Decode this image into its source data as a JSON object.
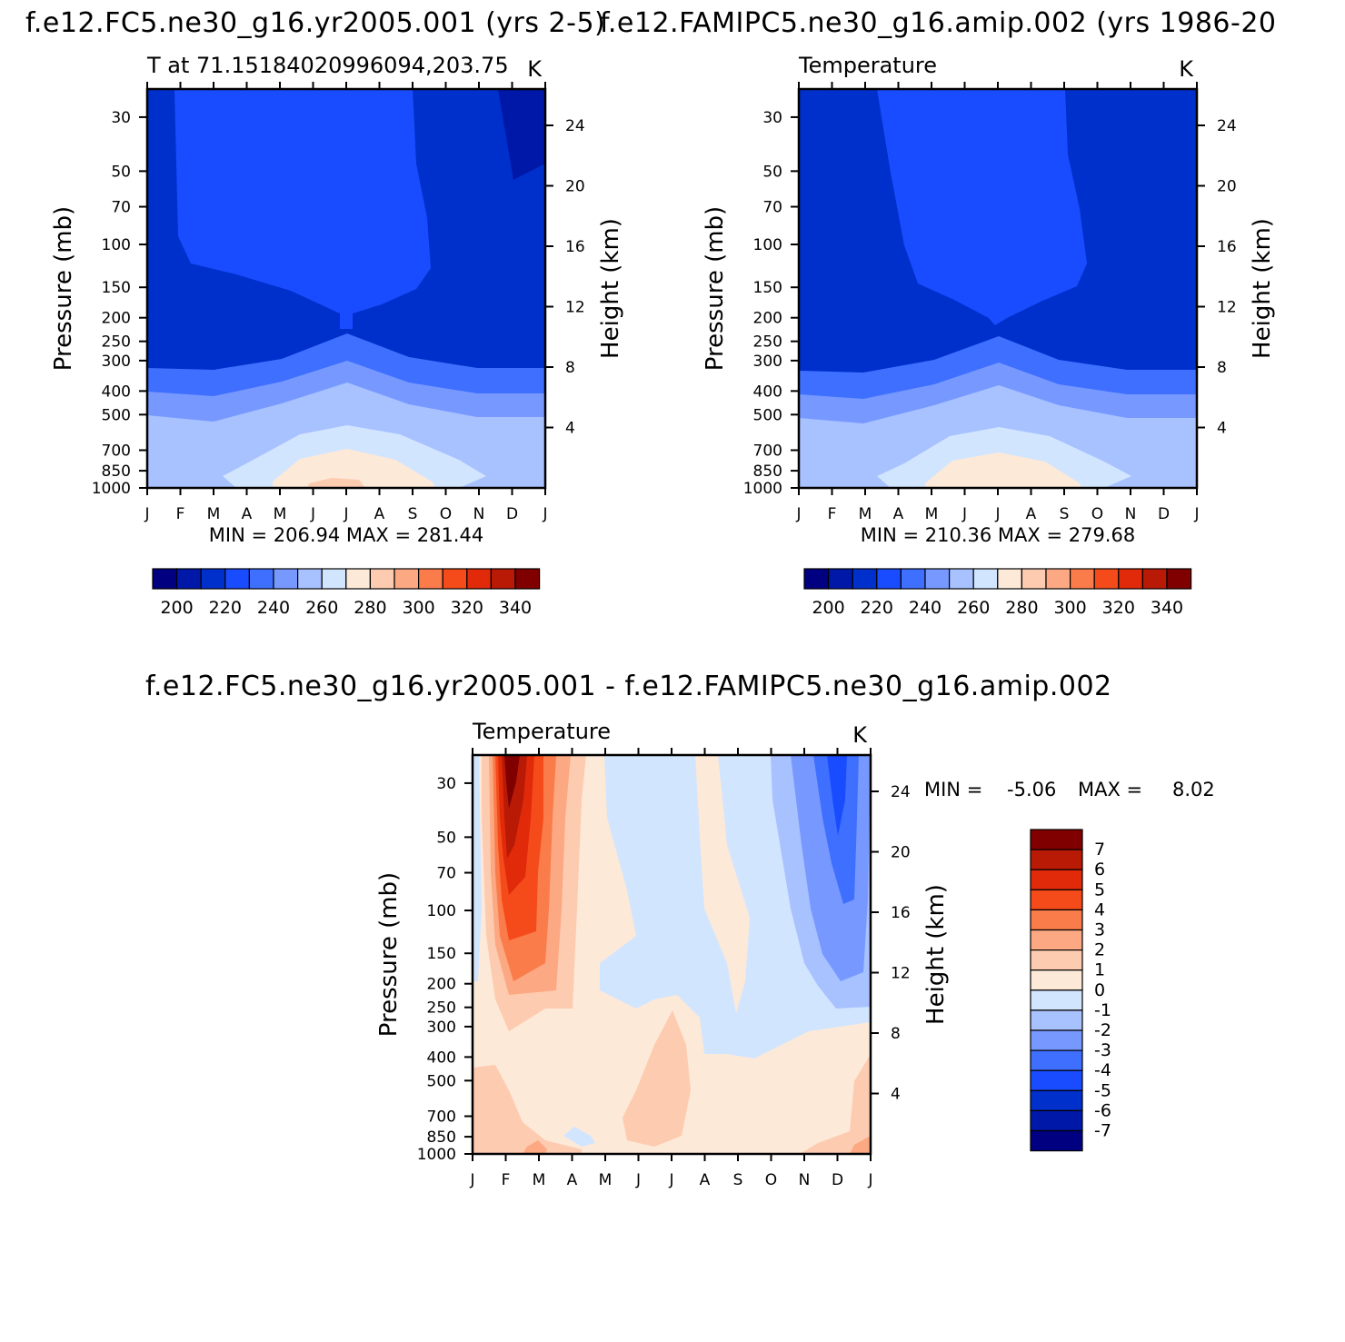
{
  "page": {
    "title_left": "f.e12.FC5.ne30_g16.yr2005.001 (yrs 2-5)",
    "title_right": "f.e12.FAMIPC5.ne30_g16.amip.002 (yrs 1986-20",
    "diff_title": "f.e12.FC5.ne30_g16.yr2005.001 - f.e12.FAMIPC5.ne30_g16.amip.002"
  },
  "chart_data": [
    {
      "type": "heatmap",
      "subtitle": "T at 71.1518402099609​4,203.75",
      "units": "K",
      "ylabel": "Pressure (mb)",
      "y2label": "Height (km)",
      "x": [
        "J",
        "F",
        "M",
        "A",
        "M",
        "J",
        "J",
        "A",
        "S",
        "O",
        "N",
        "D",
        "J"
      ],
      "y_ticks": [
        30,
        50,
        70,
        100,
        150,
        200,
        250,
        300,
        400,
        500,
        700,
        850,
        1000
      ],
      "y2_ticks": [
        24,
        20,
        16,
        12,
        8,
        4
      ],
      "stats": "MIN = 206.94 MAX = 281.44",
      "min": 206.94,
      "max": 281.44,
      "colorbar": {
        "levels": [
          195,
          200,
          205,
          210,
          215,
          220,
          225,
          230,
          235,
          240,
          245,
          250,
          255,
          260,
          265,
          270,
          275,
          280,
          285,
          290,
          295,
          300,
          305,
          310,
          315,
          320,
          325,
          330,
          335,
          340,
          345
        ],
        "labels": [
          "200",
          "220",
          "240",
          "260",
          "280",
          "300",
          "320",
          "340"
        ]
      }
    },
    {
      "type": "heatmap",
      "subtitle": "Temperature",
      "units": "K",
      "ylabel": "Pressure (mb)",
      "y2label": "Height (km)",
      "x": [
        "J",
        "F",
        "M",
        "A",
        "M",
        "J",
        "J",
        "A",
        "S",
        "O",
        "N",
        "D",
        "J"
      ],
      "y_ticks": [
        30,
        50,
        70,
        100,
        150,
        200,
        250,
        300,
        400,
        500,
        700,
        850,
        1000
      ],
      "y2_ticks": [
        24,
        20,
        16,
        12,
        8,
        4
      ],
      "stats": "MIN = 210.36 MAX = 279.68",
      "min": 210.36,
      "max": 279.68,
      "colorbar": {
        "labels": [
          "200",
          "220",
          "240",
          "260",
          "280",
          "300",
          "320",
          "340"
        ]
      }
    },
    {
      "type": "heatmap",
      "subtitle": "Temperature",
      "units": "K",
      "ylabel": "Pressure (mb)",
      "y2label": "Height (km)",
      "x": [
        "J",
        "F",
        "M",
        "A",
        "M",
        "J",
        "J",
        "A",
        "S",
        "O",
        "N",
        "D",
        "J"
      ],
      "y_ticks": [
        30,
        50,
        70,
        100,
        150,
        200,
        250,
        300,
        400,
        500,
        700,
        850,
        1000
      ],
      "y2_ticks": [
        24,
        20,
        16,
        12,
        8,
        4
      ],
      "stats_min": "MIN =",
      "stats_min_val": "-5.06",
      "stats_max": "MAX =",
      "stats_max_val": "8.02",
      "min": -5.06,
      "max": 8.02,
      "colorbar": {
        "labels": [
          "7",
          "6",
          "5",
          "4",
          "3",
          "2",
          "1",
          "0",
          "-1",
          "-2",
          "-3",
          "-4",
          "-5",
          "-6",
          "-7"
        ]
      }
    }
  ],
  "colors": {
    "blues": [
      "#000080",
      "#0018a8",
      "#0030cc",
      "#1a4cff",
      "#3f6fff",
      "#7799ff",
      "#a8c1ff",
      "#d2e5ff"
    ],
    "reds": [
      "#fde9d8",
      "#fdcbb0",
      "#fca882",
      "#fa7c4a",
      "#f54a1a",
      "#e02a0a",
      "#b81a05",
      "#800000"
    ]
  }
}
